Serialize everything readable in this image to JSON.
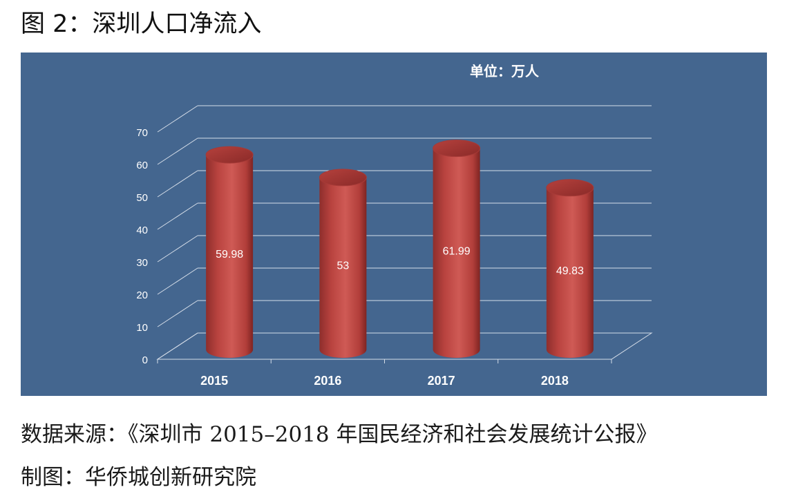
{
  "title": "图 2：深圳人口净流入",
  "chart_data": {
    "type": "bar",
    "unit_label": "单位：万人",
    "categories": [
      "2015",
      "2016",
      "2017",
      "2018"
    ],
    "values": [
      59.98,
      53,
      61.99,
      49.83
    ],
    "data_labels": [
      "59.98",
      "53",
      "61.99",
      "49.83"
    ],
    "ylim": [
      0,
      70
    ],
    "yticks": [
      0,
      10,
      20,
      30,
      40,
      50,
      60,
      70
    ],
    "grid": true,
    "bar_color": "#c0504d",
    "background_color": "#44668f"
  },
  "footer": {
    "source": "数据来源：《深圳市 2015–2018 年国民经济和社会发展统计公报》",
    "credit": "制图：华侨城创新研究院"
  }
}
